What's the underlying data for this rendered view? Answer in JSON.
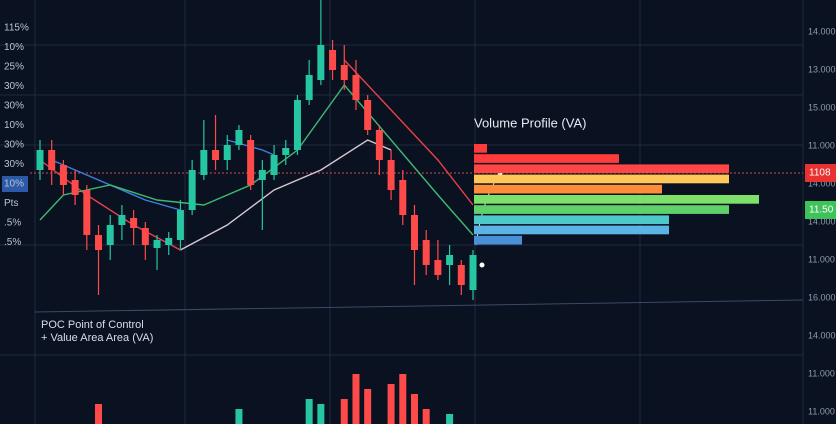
{
  "chart_data": [
    {
      "type": "candlestick",
      "open": [
        140,
        160,
        145,
        130,
        120,
        75,
        65,
        85,
        92,
        82,
        62,
        65,
        70,
        100,
        135,
        160,
        150,
        165,
        170,
        130,
        135,
        155,
        160,
        210,
        230,
        260,
        245,
        235,
        210,
        180,
        150,
        130,
        95,
        70,
        50,
        45,
        45,
        20
      ],
      "high": [
        170,
        170,
        150,
        140,
        125,
        85,
        95,
        105,
        100,
        88,
        75,
        78,
        110,
        150,
        190,
        195,
        175,
        185,
        175,
        150,
        165,
        170,
        215,
        250,
        310,
        270,
        265,
        250,
        215,
        185,
        160,
        140,
        105,
        80,
        70,
        65,
        50,
        60
      ],
      "low": [
        130,
        125,
        115,
        105,
        60,
        15,
        50,
        70,
        65,
        50,
        40,
        55,
        60,
        95,
        130,
        140,
        140,
        160,
        120,
        80,
        130,
        145,
        155,
        205,
        225,
        230,
        220,
        200,
        175,
        135,
        110,
        85,
        25,
        35,
        30,
        25,
        15,
        10
      ],
      "close": [
        160,
        140,
        125,
        115,
        75,
        60,
        85,
        95,
        82,
        65,
        70,
        72,
        100,
        140,
        160,
        150,
        165,
        180,
        125,
        140,
        155,
        162,
        210,
        235,
        265,
        240,
        230,
        210,
        180,
        150,
        120,
        95,
        60,
        45,
        35,
        55,
        25,
        55
      ],
      "up_color": "#26c6a2",
      "down_color": "#ff4a4a",
      "xlim": [
        0,
        37
      ],
      "ylim": [
        0,
        310
      ],
      "overlays": [
        {
          "color": "#e8424a",
          "x": [
            0,
            4,
            8,
            12,
            20,
            26,
            30,
            34,
            37
          ],
          "values": [
            150,
            115,
            85,
            60,
            null,
            250,
            200,
            150,
            105
          ]
        },
        {
          "color": "#3f7fe0",
          "x": [
            1,
            5,
            9,
            12,
            14,
            16,
            19,
            20
          ],
          "values": [
            150,
            130,
            110,
            100,
            null,
            170,
            160,
            155
          ]
        },
        {
          "color": "#3fb872",
          "x": [
            0,
            2,
            6,
            10,
            14,
            18,
            22,
            26,
            30,
            34,
            37
          ],
          "values": [
            90,
            115,
            125,
            110,
            105,
            125,
            160,
            225,
            170,
            115,
            75
          ]
        },
        {
          "color": "#d8c8d0",
          "x": [
            12,
            16,
            20,
            24,
            28,
            30
          ],
          "values": [
            60,
            85,
            120,
            140,
            170,
            160
          ]
        }
      ],
      "poc_color": "#ff5a5a",
      "left_axis_labels": [
        "115%",
        "10%",
        "25%",
        "30%",
        "30%",
        "10%",
        "30%",
        "30%",
        "10%",
        "Pts",
        ".5%",
        ".5%"
      ],
      "right_axis_labels": [
        "14.000",
        "13.000",
        "15.000",
        "11.000",
        "14.000",
        "14.000",
        "11.000",
        "16.000",
        "14.000",
        "11.000",
        "11.000"
      ],
      "price_tags": [
        {
          "label": "1108",
          "color": "#e83232"
        },
        {
          "label": "11.50",
          "color": "#3fc25a"
        }
      ]
    },
    {
      "type": "hbar",
      "title": "Volume Profile (VA)",
      "values": [
        13,
        145,
        255,
        255,
        188,
        285,
        255,
        195,
        195,
        48
      ],
      "colors": [
        "#ff3b3b",
        "#ff3b3b",
        "#ff4646",
        "#ffc658",
        "#ff8c3a",
        "#7de06a",
        "#5fd16a",
        "#4ec9c9",
        "#5ab4e6",
        "#4a90d9"
      ],
      "xlim": [
        0,
        290
      ]
    },
    {
      "type": "volume",
      "legend": [
        "POC Point of Control",
        "+ Value Area Area (VA)"
      ],
      "x": [
        5,
        17,
        23,
        24,
        26,
        27,
        28,
        30,
        31,
        32,
        33,
        35
      ],
      "values": [
        20,
        15,
        25,
        20,
        25,
        50,
        35,
        40,
        50,
        30,
        15,
        10
      ],
      "ylim": [
        0,
        60
      ]
    }
  ]
}
